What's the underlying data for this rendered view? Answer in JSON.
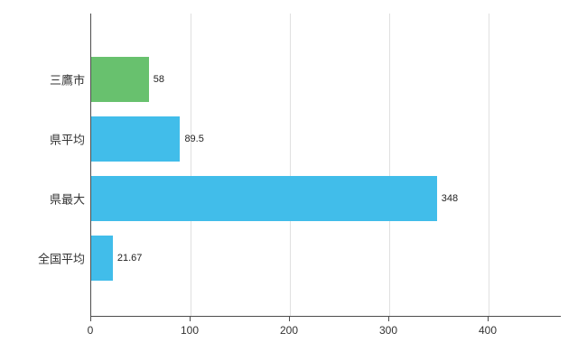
{
  "chart_data": {
    "type": "bar",
    "orientation": "horizontal",
    "title": "",
    "xlabel": "",
    "ylabel": "",
    "categories": [
      "三鷹市",
      "県平均",
      "県最大",
      "全国平均"
    ],
    "values": [
      58,
      89.5,
      348,
      21.67
    ],
    "value_labels": [
      "58",
      "89.5",
      "348",
      "21.67"
    ],
    "bar_colors": [
      "#68c16e",
      "#41bdea",
      "#41bdea",
      "#41bdea"
    ],
    "x_ticks": [
      0,
      100,
      200,
      300,
      400
    ],
    "x_tick_labels": [
      "0",
      "100",
      "200",
      "300",
      "400"
    ],
    "xlim": [
      0,
      400
    ],
    "grid": "vertical",
    "legend": "none"
  },
  "colors": {
    "background": "#ffffff",
    "axis": "#4d4d4d",
    "grid": "#e0e0e0",
    "text": "#333333",
    "bar_blue": "#41bdea",
    "bar_green": "#68c16e"
  }
}
